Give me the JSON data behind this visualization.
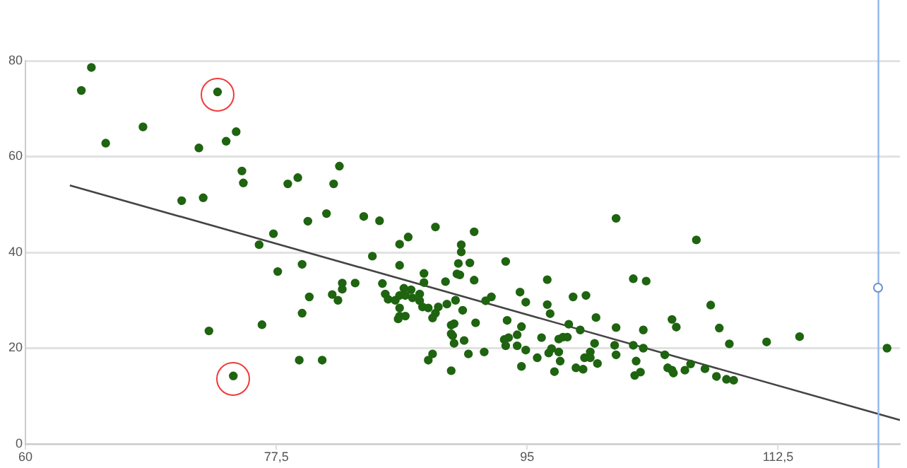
{
  "chart_data": {
    "type": "scatter",
    "xlim": [
      60,
      121
    ],
    "xticks": [
      60,
      {
        "value": 77.5,
        "label": "77,5"
      },
      95,
      {
        "value": 112.5,
        "label": "112,5"
      }
    ],
    "ylim": [
      0,
      80
    ],
    "yticks": [
      0,
      20,
      40,
      60,
      80
    ],
    "grid": "y",
    "legend": false,
    "series": [
      {
        "type": "scatter",
        "marker": "circle",
        "color": "#1f6410",
        "x": [
          64.6,
          63.9,
          73.4,
          65.6,
          68.2,
          72.1,
          74.0,
          74.7,
          75.1,
          75.2,
          70.9,
          72.4,
          78.3,
          79.0,
          81.9,
          81.5,
          79.7,
          81.0,
          77.3,
          76.3,
          83.6,
          84.7,
          88.6,
          86.7,
          86.1,
          91.3,
          90.4,
          90.4,
          90.2,
          91.0,
          90.1,
          90.3,
          91.3,
          93.5,
          94.5,
          84.2,
          86.1,
          87.8,
          87.8,
          89.3,
          79.3,
          77.6,
          82.1,
          82.1,
          83.0,
          81.4,
          81.8,
          79.8,
          79.3,
          76.5,
          84.9,
          85.1,
          85.3,
          85.8,
          86.1,
          86.4,
          86.5,
          86.9,
          87.0,
          87.5,
          87.5,
          86.1,
          86.1,
          86.0,
          86.5,
          87.7,
          88.1,
          88.4,
          88.6,
          88.8,
          89.4,
          90.0,
          90.5,
          89.9,
          89.7,
          89.7,
          89.8,
          89.9,
          90.6,
          91.4,
          92.1,
          92.5,
          93.6,
          94.3,
          93.7,
          93.4,
          93.5,
          94.3,
          94.6,
          90.9,
          92.0,
          88.4,
          88.1,
          89.7,
          79.1,
          80.7,
          74.5,
          94.6,
          72.8,
          101.2,
          96.4,
          94.9,
          96.4,
          96.6,
          96.0,
          94.9,
          95.7,
          96.5,
          96.7,
          97.2,
          97.5,
          97.8,
          97.2,
          97.3,
          96.9,
          98.2,
          99.1,
          97.9,
          98.7,
          99.8,
          99.7,
          99.4,
          99.0,
          99.4,
          99.9,
          98.4,
          98.9,
          101.2,
          101.1,
          101.2,
          102.4,
          103.3,
          103.1,
          102.4,
          103.1,
          102.6,
          102.5,
          102.9,
          104.6,
          104.8,
          105.1,
          105.4,
          105.2,
          106.8,
          107.8,
          108.4,
          109.1,
          111.7,
          114.0,
          120.1,
          105.1,
          106.0,
          106.4,
          107.4,
          108.2,
          108.9,
          109.4
        ],
        "values": [
          78.6,
          73.8,
          73.5,
          62.8,
          66.2,
          61.8,
          63.2,
          65.2,
          57.0,
          54.5,
          50.8,
          51.4,
          54.3,
          55.6,
          58.0,
          54.3,
          46.5,
          48.1,
          43.9,
          41.6,
          47.5,
          46.6,
          45.3,
          43.2,
          41.7,
          44.3,
          41.6,
          40.1,
          37.7,
          37.8,
          35.5,
          35.3,
          34.2,
          38.1,
          31.7,
          39.2,
          37.3,
          35.6,
          33.7,
          33.9,
          37.5,
          36.0,
          33.6,
          32.3,
          33.6,
          31.2,
          30.0,
          30.7,
          27.3,
          24.9,
          33.5,
          31.3,
          30.2,
          30.0,
          31.0,
          32.5,
          31.0,
          32.2,
          30.5,
          31.3,
          29.9,
          28.4,
          26.7,
          26.1,
          26.7,
          28.6,
          28.4,
          26.3,
          27.3,
          28.6,
          29.2,
          30.0,
          27.9,
          25.1,
          24.8,
          23.0,
          22.6,
          21.0,
          21.6,
          25.3,
          29.9,
          30.7,
          25.8,
          22.8,
          22.2,
          21.8,
          20.5,
          20.5,
          24.5,
          18.8,
          19.2,
          18.8,
          17.5,
          15.3,
          17.5,
          17.5,
          14.2,
          16.2,
          23.6,
          47.1,
          34.3,
          29.6,
          29.1,
          27.2,
          22.2,
          19.6,
          18.0,
          19.0,
          19.9,
          21.9,
          22.3,
          22.3,
          19.2,
          17.3,
          15.1,
          30.7,
          31.0,
          25.0,
          23.8,
          26.4,
          21.0,
          19.2,
          18.0,
          18.0,
          16.8,
          15.9,
          15.6,
          24.3,
          20.6,
          18.6,
          34.5,
          34.0,
          23.8,
          20.6,
          20.0,
          17.3,
          14.3,
          15.0,
          18.6,
          15.9,
          26.0,
          24.4,
          14.8,
          42.6,
          29.0,
          24.2,
          20.9,
          21.3,
          22.4,
          20.0,
          15.4,
          15.4,
          16.7,
          15.7,
          14.1,
          13.5,
          13.3
        ]
      },
      {
        "type": "line",
        "color": "#444444",
        "x": [
          63.1,
          121
        ],
        "values": [
          54.0,
          5.0
        ]
      }
    ],
    "ref_lines": [
      {
        "axis": "x",
        "value": 119.5,
        "color": "#8fb6ec"
      }
    ]
  }
}
